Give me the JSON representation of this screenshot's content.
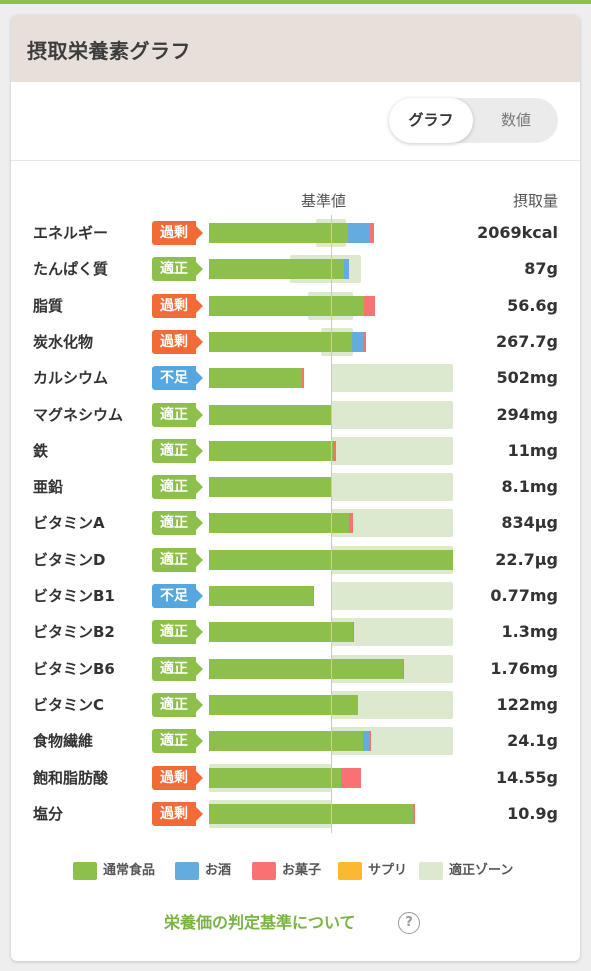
{
  "title": "摂取栄養素グラフ",
  "view_toggle": {
    "graph_label": "グラフ",
    "numeric_label": "数値",
    "selected": "グラフ"
  },
  "columns": {
    "standard": "基準値",
    "intake": "摂取量"
  },
  "status_colors": {
    "過剰": "#f26a35",
    "適正": "#8cc04b",
    "不足": "#56a6e0"
  },
  "chart_data": {
    "type": "bar",
    "orientation": "horizontal",
    "stacked": true,
    "unit": "fraction of standard value (1.0 = 基準値)",
    "categories": [
      "エネルギー",
      "たんぱく質",
      "脂質",
      "炭水化物",
      "カルシウム",
      "マグネシウム",
      "鉄",
      "亜鉛",
      "ビタミンA",
      "ビタミンD",
      "ビタミンB1",
      "ビタミンB2",
      "ビタミンB6",
      "ビタミンC",
      "食物繊維",
      "飽和脂肪酸",
      "塩分"
    ],
    "series": [
      {
        "name": "通常食品",
        "color": "#8cc04b",
        "values": [
          1.14,
          1.11,
          1.27,
          1.17,
          0.76,
          1.0,
          1.02,
          1.0,
          1.15,
          2.0,
          0.85,
          1.18,
          1.59,
          1.22,
          1.26,
          1.08,
          1.67
        ]
      },
      {
        "name": "お酒",
        "color": "#64acde",
        "values": [
          0.18,
          0.04,
          0.0,
          0.09,
          0.0,
          0.0,
          0.0,
          0.0,
          0.0,
          0.0,
          0.0,
          0.0,
          0.0,
          0.0,
          0.05,
          0.0,
          0.0
        ]
      },
      {
        "name": "お菓子",
        "color": "#f97272",
        "values": [
          0.03,
          0.0,
          0.09,
          0.03,
          0.02,
          0.01,
          0.02,
          0.01,
          0.03,
          0.0,
          0.01,
          0.01,
          0.01,
          0.0,
          0.02,
          0.17,
          0.02
        ]
      },
      {
        "name": "サプリ",
        "color": "#fbb830",
        "values": [
          0,
          0,
          0,
          0,
          0,
          0,
          0,
          0,
          0,
          0,
          0,
          0,
          0,
          0,
          0,
          0,
          0
        ]
      }
    ],
    "optimal_zone": [
      [
        0.88,
        1.12
      ],
      [
        0.66,
        1.25
      ],
      [
        0.81,
        1.18
      ],
      [
        0.92,
        1.18
      ],
      [
        1.0,
        2.0
      ],
      [
        1.0,
        2.0
      ],
      [
        1.0,
        2.0
      ],
      [
        1.0,
        2.0
      ],
      [
        1.0,
        2.0
      ],
      [
        1.0,
        2.0
      ],
      [
        1.0,
        2.0
      ],
      [
        1.0,
        2.0
      ],
      [
        1.0,
        2.0
      ],
      [
        1.0,
        2.0
      ],
      [
        1.0,
        2.0
      ],
      [
        0.0,
        1.0
      ],
      [
        0.0,
        1.0
      ]
    ],
    "status": [
      "過剰",
      "適正",
      "過剰",
      "過剰",
      "不足",
      "適正",
      "適正",
      "適正",
      "適正",
      "適正",
      "不足",
      "適正",
      "適正",
      "適正",
      "適正",
      "過剰",
      "過剰"
    ],
    "intake": [
      "2069kcal",
      "87g",
      "56.6g",
      "267.7g",
      "502mg",
      "294mg",
      "11mg",
      "8.1mg",
      "834μg",
      "22.7μg",
      "0.77mg",
      "1.3mg",
      "1.76mg",
      "122mg",
      "24.1g",
      "14.55g",
      "10.9g"
    ],
    "xlim": [
      0,
      2.0
    ],
    "legend_position": "bottom"
  },
  "legend": [
    {
      "label": "通常食品",
      "color": "#8cc04b"
    },
    {
      "label": "お酒",
      "color": "#64acde"
    },
    {
      "label": "お菓子",
      "color": "#f97272"
    },
    {
      "label": "サプリ",
      "color": "#fbb830"
    },
    {
      "label": "適正ゾーン",
      "color": "#dde9cf"
    }
  ],
  "criteria_link": "栄養価の判定基準について",
  "help_icon": "question-circle-icon",
  "help_glyph": "?"
}
